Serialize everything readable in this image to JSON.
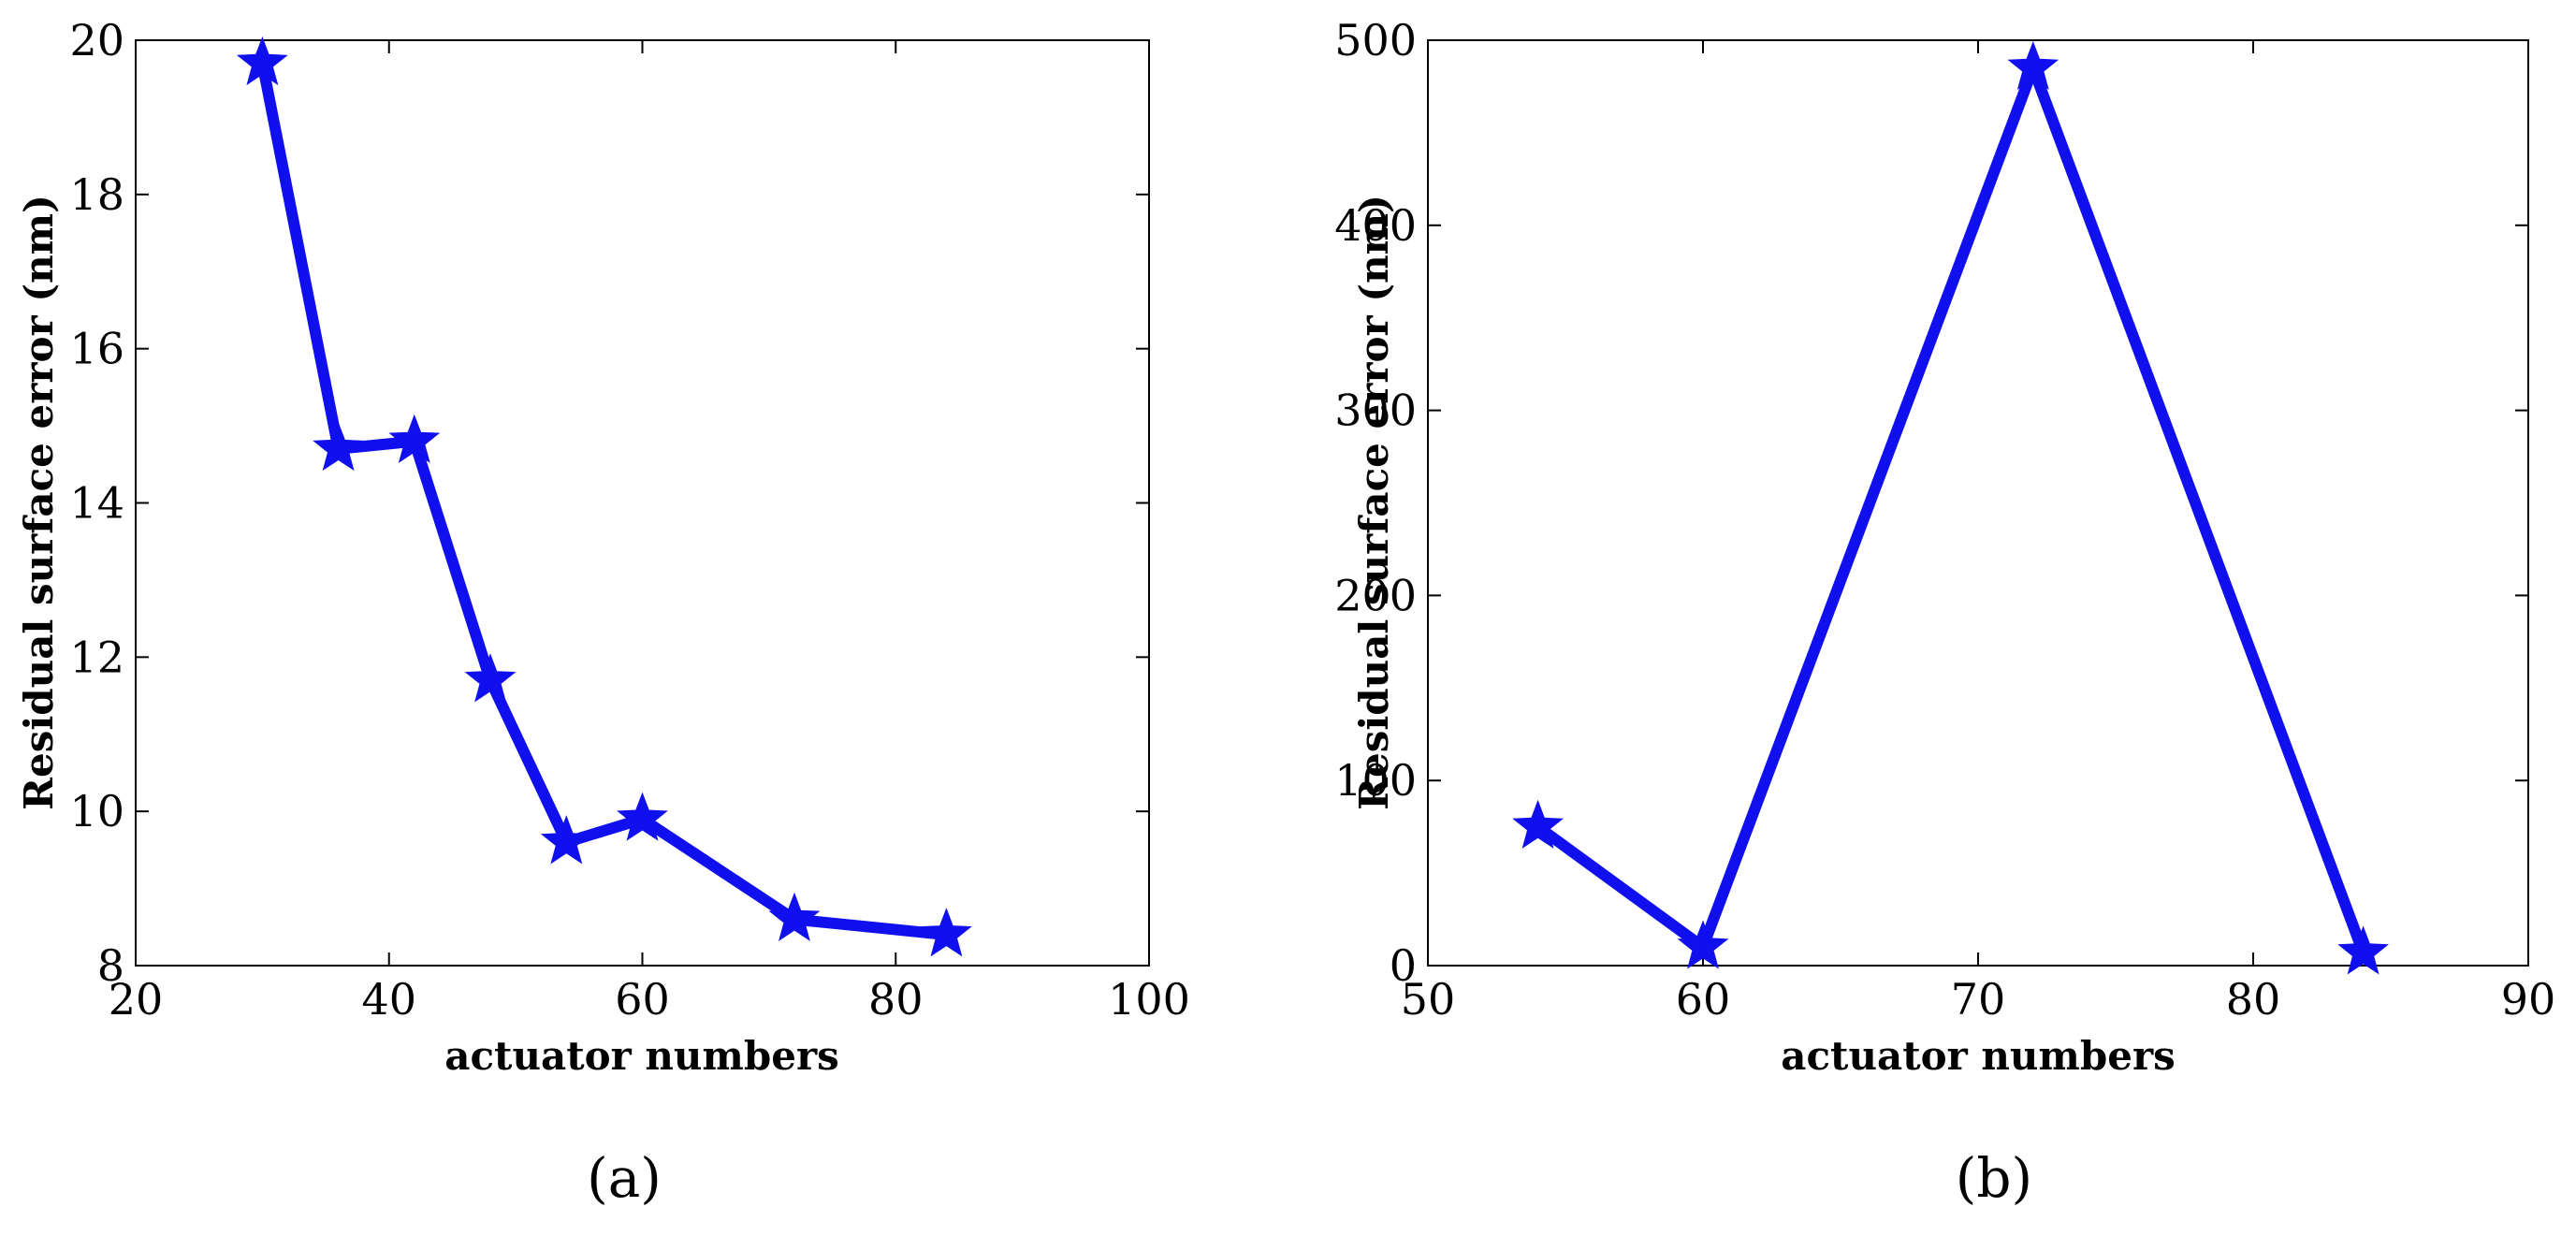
{
  "chart_data": [
    {
      "type": "line",
      "panel_label": "(a)",
      "xlabel": "actuator numbers",
      "ylabel": "Residual surface error (nm)",
      "xlim": [
        20,
        100
      ],
      "ylim": [
        8,
        20
      ],
      "x_ticks": [
        20,
        40,
        60,
        80,
        100
      ],
      "y_ticks": [
        8,
        10,
        12,
        14,
        16,
        18,
        20
      ],
      "grid": false,
      "marker": "star",
      "series": [
        {
          "color": "#1010ee",
          "points": [
            {
              "x": 30,
              "y": 19.7
            },
            {
              "x": 36,
              "y": 14.7
            },
            {
              "x": 42,
              "y": 14.8
            },
            {
              "x": 48,
              "y": 11.7
            },
            {
              "x": 54,
              "y": 9.6
            },
            {
              "x": 60,
              "y": 9.9
            },
            {
              "x": 72,
              "y": 8.6
            },
            {
              "x": 84,
              "y": 8.4
            }
          ]
        }
      ]
    },
    {
      "type": "line",
      "panel_label": "(b)",
      "xlabel": "actuator numbers",
      "ylabel": "Residual surface error (nm)",
      "xlim": [
        50,
        90
      ],
      "ylim": [
        0,
        500
      ],
      "x_ticks": [
        50,
        60,
        70,
        80,
        90
      ],
      "y_ticks": [
        0,
        100,
        200,
        300,
        400,
        500
      ],
      "grid": false,
      "marker": "star",
      "series": [
        {
          "color": "#1010ee",
          "points": [
            {
              "x": 54,
              "y": 75
            },
            {
              "x": 60,
              "y": 10
            },
            {
              "x": 72,
              "y": 485
            },
            {
              "x": 84,
              "y": 7
            }
          ]
        }
      ]
    }
  ]
}
